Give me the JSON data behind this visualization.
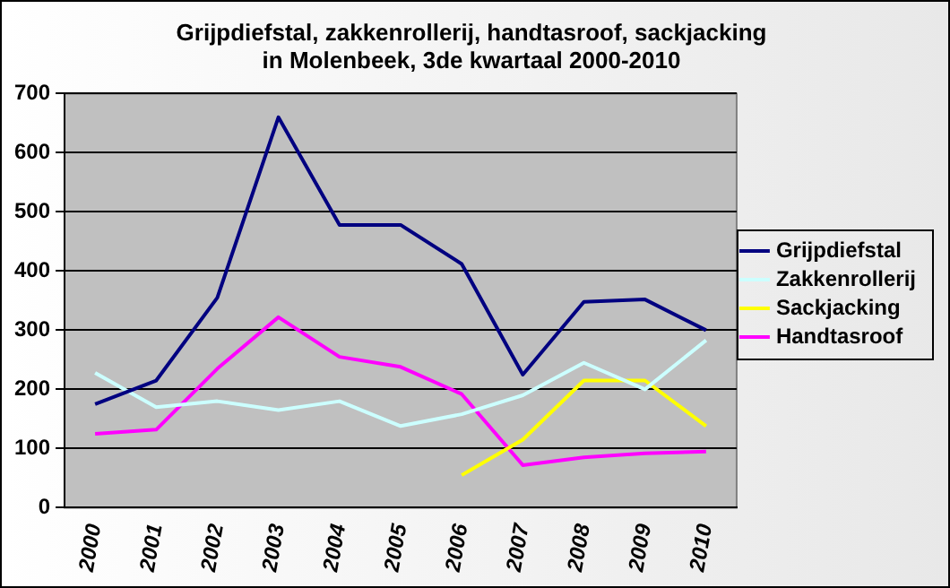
{
  "chart_data": {
    "type": "line",
    "title": "Grijpdiefstal, zakkenrollerij, handtasroof, sackjacking\nin Molenbeek, 3de kwartaal 2000-2010",
    "categories": [
      "2000",
      "2001",
      "2002",
      "2003",
      "2004",
      "2005",
      "2006",
      "2007",
      "2008",
      "2009",
      "2010"
    ],
    "series": [
      {
        "name": "Grijpdiefstal",
        "color": "#000080",
        "values": [
          175,
          215,
          355,
          660,
          478,
          478,
          412,
          225,
          348,
          352,
          300
        ]
      },
      {
        "name": "Zakkenrollerij",
        "color": "#ccffff",
        "values": [
          228,
          170,
          180,
          165,
          180,
          138,
          158,
          190,
          245,
          200,
          283
        ]
      },
      {
        "name": "Sackjacking",
        "color": "#ffff00",
        "values": [
          null,
          null,
          null,
          null,
          null,
          null,
          55,
          115,
          215,
          215,
          138
        ]
      },
      {
        "name": "Handtasroof",
        "color": "#ff00ff",
        "values": [
          125,
          132,
          235,
          322,
          255,
          238,
          192,
          72,
          85,
          92,
          95
        ]
      }
    ],
    "ylim": [
      0,
      700
    ],
    "yticks": [
      0,
      100,
      200,
      300,
      400,
      500,
      600,
      700
    ],
    "grid": "y",
    "legend": "right",
    "marker": "none",
    "line_style": "solid"
  }
}
